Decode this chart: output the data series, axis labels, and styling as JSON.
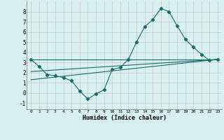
{
  "xlabel": "Humidex (Indice chaleur)",
  "bg_color": "#d8f0f0",
  "grid_color": "#c8c8c8",
  "line_color": "#1a6b6b",
  "xlim": [
    -0.5,
    23.5
  ],
  "ylim": [
    -1.6,
    9.0
  ],
  "xticks": [
    0,
    1,
    2,
    3,
    4,
    5,
    6,
    7,
    8,
    9,
    10,
    11,
    12,
    13,
    14,
    15,
    16,
    17,
    18,
    19,
    20,
    21,
    22,
    23
  ],
  "yticks": [
    -1,
    0,
    1,
    2,
    3,
    4,
    5,
    6,
    7,
    8
  ],
  "series1_x": [
    0,
    1,
    2,
    3,
    4,
    5,
    6,
    7,
    8,
    9,
    10,
    11,
    12,
    13,
    14,
    15,
    16,
    17,
    18,
    19,
    20,
    21,
    22,
    23
  ],
  "series1_y": [
    3.3,
    2.6,
    1.8,
    1.7,
    1.5,
    1.2,
    0.2,
    -0.6,
    -0.1,
    0.3,
    2.3,
    2.5,
    3.3,
    5.0,
    6.5,
    7.2,
    8.3,
    8.0,
    6.6,
    5.3,
    4.5,
    3.8,
    3.2,
    3.3
  ],
  "series2_x": [
    0,
    23
  ],
  "series2_y": [
    3.3,
    3.3
  ],
  "series3_x": [
    0,
    23
  ],
  "series3_y": [
    2.1,
    3.3
  ],
  "series4_x": [
    0,
    23
  ],
  "series4_y": [
    1.3,
    3.3
  ]
}
